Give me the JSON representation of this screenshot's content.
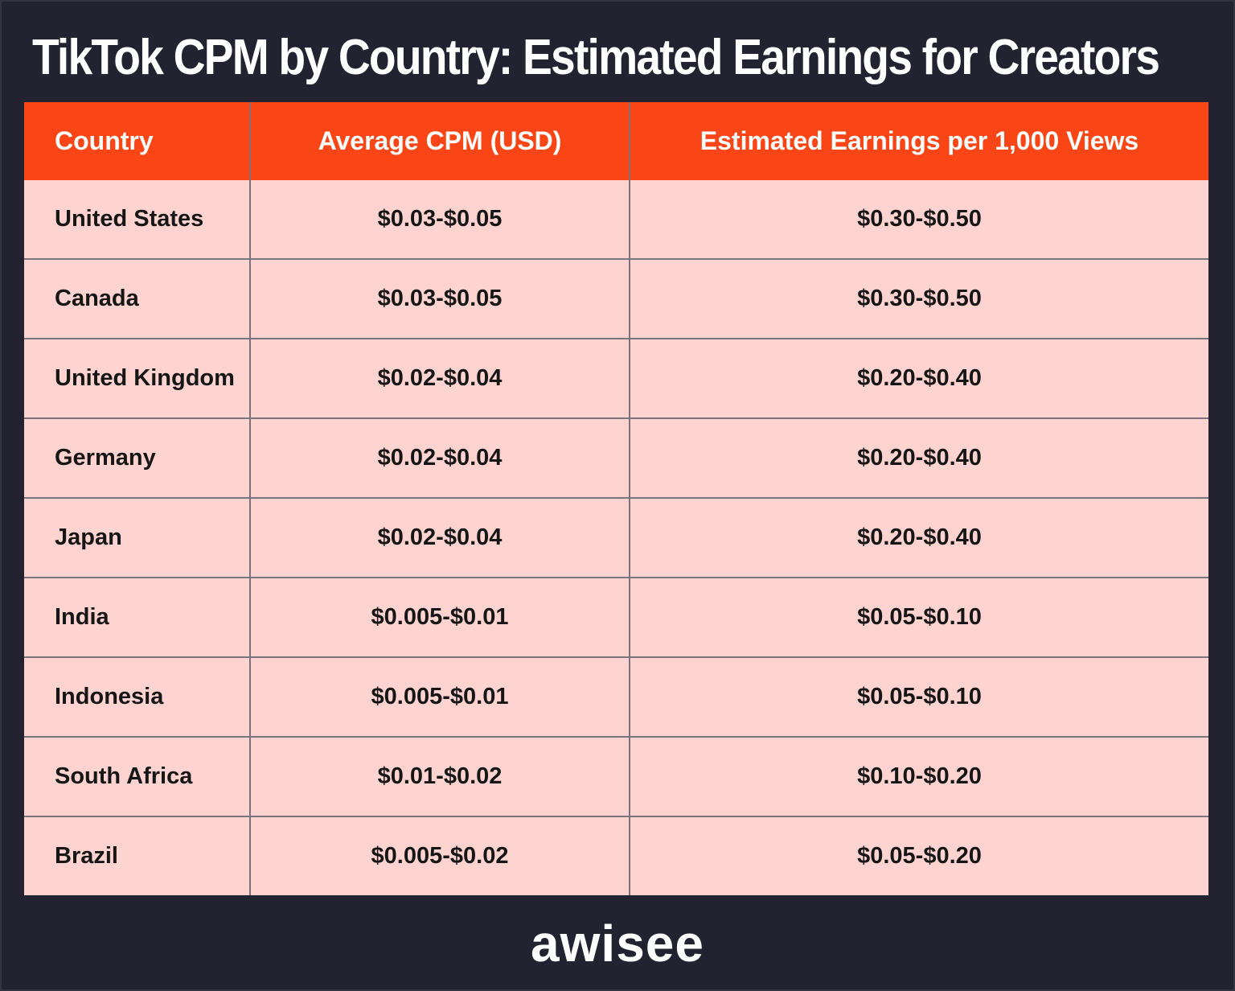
{
  "page": {
    "title": "TikTok CPM by Country: Estimated Earnings for Creators"
  },
  "table": {
    "columns": [
      "Country",
      "Average CPM (USD)",
      "Estimated Earnings per 1,000 Views"
    ],
    "rows": [
      {
        "country": "United States",
        "cpm": "$0.03-$0.05",
        "earnings": "$0.30-$0.50"
      },
      {
        "country": "Canada",
        "cpm": "$0.03-$0.05",
        "earnings": "$0.30-$0.50"
      },
      {
        "country": "United Kingdom",
        "cpm": "$0.02-$0.04",
        "earnings": "$0.20-$0.40"
      },
      {
        "country": "Germany",
        "cpm": "$0.02-$0.04",
        "earnings": "$0.20-$0.40"
      },
      {
        "country": "Japan",
        "cpm": "$0.02-$0.04",
        "earnings": "$0.20-$0.40"
      },
      {
        "country": "India",
        "cpm": "$0.005-$0.01",
        "earnings": "$0.05-$0.10"
      },
      {
        "country": "Indonesia",
        "cpm": "$0.005-$0.01",
        "earnings": "$0.05-$0.10"
      },
      {
        "country": "South Africa",
        "cpm": "$0.01-$0.02",
        "earnings": "$0.10-$0.20"
      },
      {
        "country": "Brazil",
        "cpm": "$0.005-$0.02",
        "earnings": "$0.05-$0.20"
      }
    ]
  },
  "footer": {
    "logo_text": "awisee"
  },
  "colors": {
    "background": "#232230",
    "header_bg": "#FA4616",
    "row_bg": "#FFD3CF",
    "header_text": "#FFFFFF",
    "body_text": "#161616",
    "title_text": "#FFFFFF"
  },
  "chart_data": {
    "type": "table",
    "title": "TikTok CPM by Country: Estimated Earnings for Creators",
    "columns": [
      "Country",
      "Average CPM (USD)",
      "Estimated Earnings per 1,000 Views"
    ],
    "rows": [
      [
        "United States",
        "$0.03-$0.05",
        "$0.30-$0.50"
      ],
      [
        "Canada",
        "$0.03-$0.05",
        "$0.30-$0.50"
      ],
      [
        "United Kingdom",
        "$0.02-$0.04",
        "$0.20-$0.40"
      ],
      [
        "Germany",
        "$0.02-$0.04",
        "$0.20-$0.40"
      ],
      [
        "Japan",
        "$0.02-$0.04",
        "$0.20-$0.40"
      ],
      [
        "India",
        "$0.005-$0.01",
        "$0.05-$0.10"
      ],
      [
        "Indonesia",
        "$0.005-$0.01",
        "$0.05-$0.10"
      ],
      [
        "South Africa",
        "$0.01-$0.02",
        "$0.10-$0.20"
      ],
      [
        "Brazil",
        "$0.005-$0.02",
        "$0.05-$0.20"
      ]
    ]
  }
}
